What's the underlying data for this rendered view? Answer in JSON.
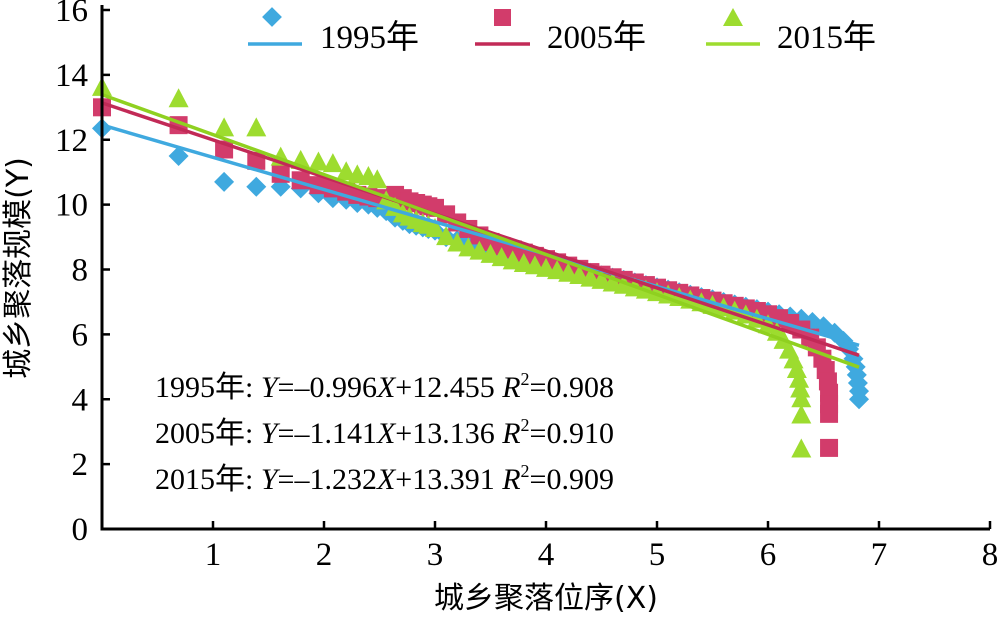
{
  "chart_data": {
    "type": "scatter",
    "xlabel": "城乡聚落位序(X)",
    "ylabel": "城乡聚落规模(Y)",
    "xlim": [
      0,
      8
    ],
    "ylim": [
      0,
      16
    ],
    "x_ticks": [
      "1",
      "2",
      "3",
      "4",
      "5",
      "6",
      "7",
      "8"
    ],
    "y_ticks": [
      "0",
      "2",
      "4",
      "6",
      "8",
      "10",
      "12",
      "14",
      "16"
    ],
    "legend_position": "top",
    "series": [
      {
        "name": "1995年",
        "marker": "diamond",
        "color": "#3fa9df",
        "fit": {
          "slope": -0.996,
          "intercept": 12.455,
          "x_range": [
            0,
            6.82
          ]
        },
        "equation": {
          "label": "1995年: ",
          "y": "Y",
          "mid": "=–0.996",
          "x": "X",
          "tail": "+12.455 ",
          "r": "R",
          "sup": "2",
          "r2": "=0.908"
        },
        "points": [
          [
            0.0,
            12.35
          ],
          [
            0.69,
            11.5
          ],
          [
            1.1,
            10.7
          ],
          [
            1.39,
            10.55
          ],
          [
            1.61,
            10.55
          ],
          [
            1.79,
            10.5
          ],
          [
            1.95,
            10.35
          ],
          [
            2.08,
            10.2
          ],
          [
            2.2,
            10.15
          ],
          [
            2.3,
            10.05
          ],
          [
            2.4,
            10.0
          ],
          [
            2.48,
            9.9
          ],
          [
            2.56,
            9.8
          ],
          [
            2.64,
            9.6
          ],
          [
            2.71,
            9.5
          ],
          [
            2.77,
            9.4
          ],
          [
            2.83,
            9.35
          ],
          [
            2.89,
            9.3
          ],
          [
            2.94,
            9.25
          ],
          [
            3.0,
            9.2
          ],
          [
            3.1,
            9.0
          ],
          [
            3.2,
            8.9
          ],
          [
            3.3,
            8.8
          ],
          [
            3.4,
            8.7
          ],
          [
            3.5,
            8.6
          ],
          [
            3.6,
            8.52
          ],
          [
            3.7,
            8.45
          ],
          [
            3.8,
            8.35
          ],
          [
            3.9,
            8.28
          ],
          [
            4.0,
            8.2
          ],
          [
            4.1,
            8.12
          ],
          [
            4.2,
            8.05
          ],
          [
            4.3,
            7.98
          ],
          [
            4.4,
            7.9
          ],
          [
            4.5,
            7.82
          ],
          [
            4.6,
            7.75
          ],
          [
            4.7,
            7.68
          ],
          [
            4.8,
            7.6
          ],
          [
            4.9,
            7.52
          ],
          [
            5.0,
            7.45
          ],
          [
            5.1,
            7.38
          ],
          [
            5.2,
            7.3
          ],
          [
            5.3,
            7.22
          ],
          [
            5.4,
            7.15
          ],
          [
            5.5,
            7.08
          ],
          [
            5.6,
            7.0
          ],
          [
            5.7,
            6.92
          ],
          [
            5.8,
            6.85
          ],
          [
            5.9,
            6.78
          ],
          [
            6.0,
            6.7
          ],
          [
            6.1,
            6.62
          ],
          [
            6.2,
            6.55
          ],
          [
            6.3,
            6.48
          ],
          [
            6.4,
            6.38
          ],
          [
            6.5,
            6.25
          ],
          [
            6.6,
            6.05
          ],
          [
            6.68,
            5.8
          ],
          [
            6.73,
            5.55
          ],
          [
            6.77,
            5.25
          ],
          [
            6.79,
            5.0
          ],
          [
            6.8,
            4.75
          ],
          [
            6.81,
            4.5
          ],
          [
            6.82,
            4.25
          ],
          [
            6.82,
            4.0
          ]
        ]
      },
      {
        "name": "2005年",
        "marker": "square",
        "color": "#d23c6b",
        "fit": {
          "slope": -1.141,
          "intercept": 13.136,
          "x_range": [
            0,
            6.82
          ]
        },
        "equation": {
          "label": "2005年: ",
          "y": "Y",
          "mid": "=–1.141",
          "x": "X",
          "tail": "+13.136 ",
          "r": "R",
          "sup": "2",
          "r2": "=0.910"
        },
        "points": [
          [
            0.0,
            13.0
          ],
          [
            0.69,
            12.45
          ],
          [
            1.1,
            11.7
          ],
          [
            1.39,
            11.35
          ],
          [
            1.61,
            10.95
          ],
          [
            1.79,
            10.75
          ],
          [
            1.95,
            10.6
          ],
          [
            2.08,
            10.5
          ],
          [
            2.2,
            10.4
          ],
          [
            2.3,
            10.3
          ],
          [
            2.4,
            10.25
          ],
          [
            2.48,
            10.2
          ],
          [
            2.56,
            10.15
          ],
          [
            2.64,
            10.3
          ],
          [
            2.71,
            10.2
          ],
          [
            2.77,
            10.1
          ],
          [
            2.83,
            10.05
          ],
          [
            2.89,
            10.0
          ],
          [
            2.94,
            9.95
          ],
          [
            3.0,
            9.9
          ],
          [
            3.1,
            9.7
          ],
          [
            3.2,
            9.45
          ],
          [
            3.3,
            9.25
          ],
          [
            3.4,
            9.05
          ],
          [
            3.5,
            8.85
          ],
          [
            3.6,
            8.72
          ],
          [
            3.7,
            8.62
          ],
          [
            3.8,
            8.52
          ],
          [
            3.9,
            8.42
          ],
          [
            4.0,
            8.32
          ],
          [
            4.1,
            8.22
          ],
          [
            4.2,
            8.12
          ],
          [
            4.3,
            8.02
          ],
          [
            4.4,
            7.92
          ],
          [
            4.5,
            7.84
          ],
          [
            4.6,
            7.76
          ],
          [
            4.7,
            7.68
          ],
          [
            4.8,
            7.6
          ],
          [
            4.9,
            7.52
          ],
          [
            5.0,
            7.44
          ],
          [
            5.1,
            7.36
          ],
          [
            5.2,
            7.28
          ],
          [
            5.3,
            7.2
          ],
          [
            5.4,
            7.12
          ],
          [
            5.5,
            7.04
          ],
          [
            5.6,
            6.96
          ],
          [
            5.7,
            6.88
          ],
          [
            5.8,
            6.8
          ],
          [
            5.9,
            6.72
          ],
          [
            6.0,
            6.62
          ],
          [
            6.1,
            6.5
          ],
          [
            6.2,
            6.35
          ],
          [
            6.3,
            6.15
          ],
          [
            6.38,
            5.9
          ],
          [
            6.44,
            5.6
          ],
          [
            6.49,
            5.25
          ],
          [
            6.52,
            4.9
          ],
          [
            6.54,
            4.55
          ],
          [
            6.55,
            4.2
          ],
          [
            6.55,
            3.85
          ],
          [
            6.55,
            3.55
          ],
          [
            6.55,
            2.5
          ]
        ]
      },
      {
        "name": "2015年",
        "marker": "triangle",
        "color": "#9ddc2f",
        "fit": {
          "slope": -1.232,
          "intercept": 13.391,
          "x_range": [
            0,
            6.82
          ]
        },
        "equation": {
          "label": "2015年: ",
          "y": "Y",
          "mid": "=–1.232",
          "x": "X",
          "tail": "+13.391 ",
          "r": "R",
          "sup": "2",
          "r2": "=0.909"
        },
        "points": [
          [
            0.0,
            13.6
          ],
          [
            0.69,
            13.25
          ],
          [
            1.1,
            12.35
          ],
          [
            1.39,
            12.35
          ],
          [
            1.61,
            11.45
          ],
          [
            1.79,
            11.35
          ],
          [
            1.95,
            11.3
          ],
          [
            2.08,
            11.25
          ],
          [
            2.2,
            11.0
          ],
          [
            2.3,
            10.9
          ],
          [
            2.4,
            10.85
          ],
          [
            2.48,
            10.75
          ],
          [
            2.56,
            10.1
          ],
          [
            2.64,
            9.9
          ],
          [
            2.71,
            9.7
          ],
          [
            2.77,
            9.6
          ],
          [
            2.83,
            9.5
          ],
          [
            2.89,
            9.4
          ],
          [
            2.94,
            9.35
          ],
          [
            3.0,
            9.25
          ],
          [
            3.1,
            9.0
          ],
          [
            3.2,
            8.8
          ],
          [
            3.3,
            8.65
          ],
          [
            3.4,
            8.55
          ],
          [
            3.5,
            8.45
          ],
          [
            3.6,
            8.35
          ],
          [
            3.7,
            8.25
          ],
          [
            3.8,
            8.17
          ],
          [
            3.9,
            8.1
          ],
          [
            4.0,
            8.02
          ],
          [
            4.1,
            7.95
          ],
          [
            4.2,
            7.87
          ],
          [
            4.3,
            7.8
          ],
          [
            4.4,
            7.72
          ],
          [
            4.5,
            7.65
          ],
          [
            4.6,
            7.57
          ],
          [
            4.7,
            7.5
          ],
          [
            4.8,
            7.42
          ],
          [
            4.9,
            7.35
          ],
          [
            5.0,
            7.27
          ],
          [
            5.1,
            7.2
          ],
          [
            5.2,
            7.12
          ],
          [
            5.3,
            7.04
          ],
          [
            5.4,
            6.96
          ],
          [
            5.5,
            6.88
          ],
          [
            5.6,
            6.8
          ],
          [
            5.7,
            6.7
          ],
          [
            5.8,
            6.58
          ],
          [
            5.9,
            6.45
          ],
          [
            6.0,
            6.28
          ],
          [
            6.08,
            6.05
          ],
          [
            6.14,
            5.8
          ],
          [
            6.19,
            5.5
          ],
          [
            6.23,
            5.2
          ],
          [
            6.26,
            4.9
          ],
          [
            6.28,
            4.6
          ],
          [
            6.29,
            4.3
          ],
          [
            6.3,
            4.0
          ],
          [
            6.3,
            3.5
          ],
          [
            6.3,
            2.45
          ]
        ]
      }
    ]
  }
}
